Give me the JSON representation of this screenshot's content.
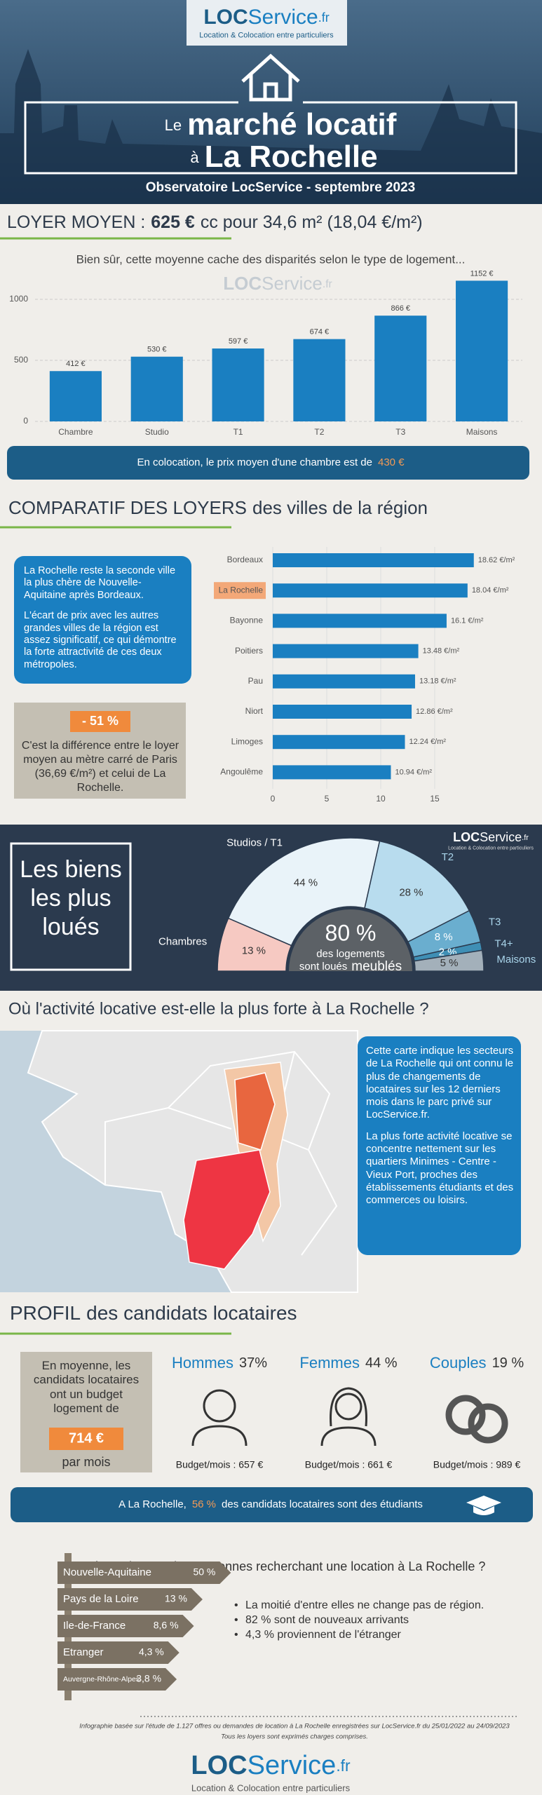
{
  "header": {
    "logo": {
      "brand": "LOC",
      "name": "Service",
      "tld": ".fr",
      "tagline": "Location & Colocation entre particuliers"
    },
    "title_small_1": "Le",
    "title_big_1": "marché locatif",
    "title_small_2": "à",
    "title_big_2": "La Rochelle",
    "subtitle": "Observatoire LocService - septembre 2023"
  },
  "loyer": {
    "title_label": "LOYER MOYEN :",
    "title_value": "625 €",
    "title_rest": "cc pour 34,6 m² (18,04 €/m²)",
    "note": "Bien sûr, cette moyenne cache des disparités selon le type de logement...",
    "coloc_text": "En colocation, le prix moyen d'une chambre est de",
    "coloc_value": "430 €"
  },
  "comparatif": {
    "title_bold": "COMPARATIF DES LOYERS",
    "title_rest": "des villes de la région",
    "box_paragraphs": [
      "La Rochelle reste la seconde ville la plus chère de Nouvelle-Aquitaine après Bordeaux.",
      "L'écart de prix avec les autres grandes villes de la région est assez significatif, ce qui démontre la forte attractivité de ces deux métropoles."
    ],
    "diff_badge": "- 51 %",
    "diff_text": "C'est la différence entre le loyer moyen au mètre carré de Paris (36,69 €/m²) et celui de La Rochelle."
  },
  "biens": {
    "title": "Les biens les plus loués"
  },
  "activite": {
    "title": "Où l'activité locative est-elle la plus forte à La Rochelle ?",
    "paragraphs": [
      "Cette carte indique les secteurs de La Rochelle qui ont connu le plus de changements de locataires sur les 12 derniers mois dans le parc privé sur LocService.fr.",
      "La plus forte activité locative se concentre nettement sur les quartiers Minimes - Centre - Vieux Port, proches des établissements étudiants et des commerces ou loisirs."
    ]
  },
  "profil": {
    "title_bold": "PROFIL",
    "title_rest": "des candidats locataires",
    "budget_text": "En moyenne, les candidats locataires ont un budget logement de",
    "budget_value": "714 €",
    "budget_unit": "par mois",
    "groups": [
      {
        "name": "Hommes",
        "share": "37%",
        "budget": "Budget/mois : 657 €"
      },
      {
        "name": "Femmes",
        "share": "44 %",
        "budget": "Budget/mois : 661 €"
      },
      {
        "name": "Couples",
        "share": "19 %",
        "budget": "Budget/mois : 989 €"
      }
    ],
    "students_pre": "A La Rochelle,",
    "students_value": "56 %",
    "students_post": "des candidats locataires sont des étudiants"
  },
  "origine": {
    "question": "D'où proviennent les personnes recherchant une location à La Rochelle ?",
    "bullets": [
      "La moitié d'entre elles ne change pas de région.",
      "82 % sont de nouveaux arrivants",
      "4,3  % proviennent de l'étranger"
    ]
  },
  "footer": {
    "lines": [
      "Infographie basée sur l'étude de 1.127 offres ou demandes de location à La Rochelle enregistrées sur LocService.fr du 25/01/2022 au 24/09/2023",
      "Tous les loyers sont exprimés charges comprises."
    ]
  },
  "chart_data": [
    {
      "type": "bar",
      "categories": [
        "Chambre",
        "Studio",
        "T1",
        "T2",
        "T3",
        "Maisons"
      ],
      "values": [
        412,
        530,
        597,
        674,
        866,
        1152
      ],
      "value_labels": [
        "412 €",
        "530 €",
        "597 €",
        "674 €",
        "866 €",
        "1152 €"
      ],
      "color": "#1a7fc1",
      "ylim": [
        0,
        1200
      ],
      "yticks": [
        0,
        500,
        1000
      ],
      "grid": true
    },
    {
      "type": "bar",
      "orientation": "horizontal",
      "categories": [
        "Bordeaux",
        "La Rochelle",
        "Bayonne",
        "Poitiers",
        "Pau",
        "Niort",
        "Limoges",
        "Angoulême"
      ],
      "values": [
        18.62,
        18.04,
        16.1,
        13.48,
        13.18,
        12.86,
        12.24,
        10.94
      ],
      "value_labels": [
        "18.62 €/m²",
        "18.04 €/m²",
        "16.1 €/m²",
        "13.48 €/m²",
        "13.18 €/m²",
        "12.86 €/m²",
        "12.24 €/m²",
        "10.94 €/m²"
      ],
      "color": "#1a7fc1",
      "highlight_index": 1,
      "highlight_color": "#f3a878",
      "xlim": [
        0,
        20
      ],
      "xticks": [
        0,
        5,
        10,
        15
      ],
      "grid": true
    },
    {
      "type": "donut",
      "half": true,
      "categories": [
        "Chambres",
        "Studios / T1",
        "T2",
        "T3",
        "T4+",
        "Maisons"
      ],
      "values": [
        13,
        44,
        28,
        8,
        2,
        5
      ],
      "value_labels": [
        "13 %",
        "44 %",
        "28 %",
        "8 %",
        "2 %",
        "5 %"
      ],
      "colors": [
        "#f6c9c2",
        "#e9f3f9",
        "#b8dcee",
        "#6aaecf",
        "#3f8fb5",
        "#a3b0ba"
      ],
      "center": {
        "value": 80,
        "label": "80 %"
      },
      "center_text": [
        "des logements",
        "sont loués",
        "meublés"
      ]
    },
    {
      "type": "bar",
      "orientation": "horizontal",
      "style": "signpost",
      "categories": [
        "Nouvelle-Aquitaine",
        "Pays de la Loire",
        "Ile-de-France",
        "Etranger",
        "Auvergne-Rhône-Alpes"
      ],
      "values": [
        50,
        13,
        8.6,
        4.3,
        3.8
      ],
      "value_labels": [
        "50 %",
        "13 %",
        "8,6 %",
        "4,3 %",
        "3,8 %"
      ],
      "color": "#7b7163"
    }
  ]
}
